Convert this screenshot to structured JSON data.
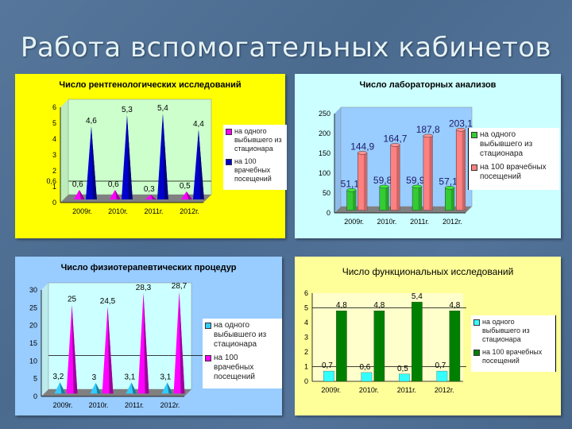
{
  "slide": {
    "title": "Работа вспомогательных кабинетов",
    "background_color": "#4f6f93"
  },
  "chart_data": [
    {
      "id": "xray",
      "type": "bar",
      "style": "3d-cone",
      "title": "Число рентгенологических исследований",
      "panel_color": "#ffff00",
      "plot_color": "#ccffcc",
      "categories": [
        "2009г.",
        "2010г.",
        "2011г.",
        "2012г."
      ],
      "series": [
        {
          "name": "на одного выбывшего из стационара",
          "color": "#ff00ff",
          "values": [
            0.6,
            0.6,
            0.3,
            0.5
          ],
          "labels": [
            "0,6",
            "0,6",
            "0,3",
            "0,5"
          ]
        },
        {
          "name": "на 100 врачебных посещений",
          "color": "#0000cc",
          "values": [
            4.6,
            5.3,
            5.4,
            4.4
          ],
          "labels": [
            "4,6",
            "5,3",
            "5,4",
            "4,4"
          ]
        }
      ],
      "yticks": [
        "0",
        "1",
        "2",
        "3",
        "4",
        "5",
        "6"
      ],
      "extra_ytick": "0,6",
      "ylim": [
        0,
        6
      ],
      "xlabel": "",
      "ylabel": "",
      "legend_position": "right"
    },
    {
      "id": "lab",
      "type": "bar",
      "style": "3d-cylinder",
      "title": "Число лабораторных анализов",
      "panel_color": "#ccffff",
      "plot_color": "#99ccff",
      "categories": [
        "2009г.",
        "2010г.",
        "2011г.",
        "2012г."
      ],
      "series": [
        {
          "name": "на одного выбывшего из стационара",
          "color": "#33cc33",
          "values": [
            51.1,
            59.8,
            59.9,
            57.1
          ],
          "labels": [
            "51,1",
            "59,8",
            "59,9",
            "57,1"
          ]
        },
        {
          "name": "на 100 врачебных посещений",
          "color": "#ff8080",
          "values": [
            144.9,
            164.7,
            187.8,
            203.1
          ],
          "labels": [
            "144,9",
            "164,7",
            "187,8",
            "203,1"
          ]
        }
      ],
      "yticks": [
        "0",
        "50",
        "100",
        "150",
        "200",
        "250"
      ],
      "ylim": [
        0,
        250
      ],
      "xlabel": "",
      "ylabel": "",
      "legend_position": "right"
    },
    {
      "id": "physio",
      "type": "bar",
      "style": "3d-cone",
      "title": "Число физиотерапевтических процедур",
      "panel_color": "#99ccff",
      "plot_color": "#ccffff",
      "categories": [
        "2009г.",
        "2010г.",
        "2011г.",
        "2012г."
      ],
      "series": [
        {
          "name": "на одного выбывшего из стационара",
          "color": "#33ccff",
          "values": [
            3.2,
            3.0,
            3.1,
            3.1
          ],
          "labels": [
            "3,2",
            "3",
            "3,1",
            "3,1"
          ]
        },
        {
          "name": "на 100 врачебных посещений",
          "color": "#ff00ff",
          "values": [
            25,
            24.5,
            28.3,
            28.7
          ],
          "labels": [
            "25",
            "24,5",
            "28,3",
            "28,7"
          ]
        }
      ],
      "yticks": [
        "0",
        "5",
        "10",
        "15",
        "20",
        "25",
        "30"
      ],
      "ylim": [
        0,
        30
      ],
      "xlabel": "",
      "ylabel": "",
      "legend_position": "right"
    },
    {
      "id": "functional",
      "type": "bar",
      "style": "2d",
      "title": "Число функциональных исследований",
      "panel_color": "#ffff99",
      "plot_color": "#ffffcc",
      "categories": [
        "2009г.",
        "2010г.",
        "2011г.",
        "2012г."
      ],
      "series": [
        {
          "name": "на одного выбывшего из стационара",
          "color": "#33ffff",
          "values": [
            0.7,
            0.6,
            0.5,
            0.7
          ],
          "labels": [
            "0,7",
            "0,6",
            "0,5",
            "0,7"
          ]
        },
        {
          "name": "на 100 врачебных посещений",
          "color": "#008000",
          "values": [
            4.8,
            4.8,
            5.4,
            4.8
          ],
          "labels": [
            "4,8",
            "4,8",
            "5,4",
            "4,8"
          ]
        }
      ],
      "yticks": [
        "0",
        "1",
        "2",
        "3",
        "4",
        "5",
        "6"
      ],
      "ylim": [
        0,
        6
      ],
      "xlabel": "",
      "ylabel": "",
      "legend_position": "right"
    }
  ]
}
